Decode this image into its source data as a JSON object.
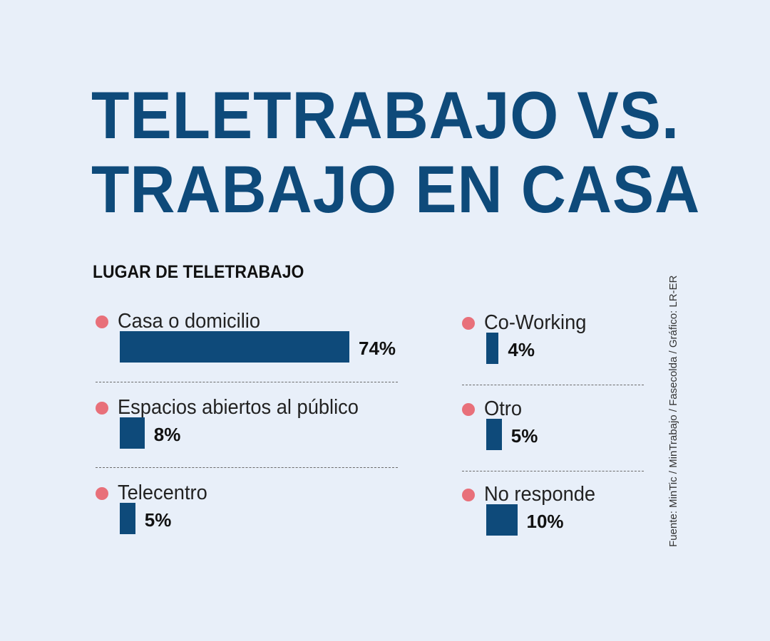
{
  "title_line1": "TELETRABAJO VS.",
  "title_line2": "TRABAJO EN CASA",
  "chart_data": {
    "type": "bar",
    "title": "LUGAR DE TELETRABAJO",
    "categories": [
      "Casa o domicilio",
      "Espacios abiertos al público",
      "Telecentro",
      "Co-Working",
      "Otro",
      "No responde"
    ],
    "values": [
      74,
      8,
      5,
      4,
      5,
      10
    ],
    "value_labels": [
      "74%",
      "8%",
      "5%",
      "4%",
      "5%",
      "10%"
    ],
    "unit": "%"
  },
  "source": "Fuente: MinTic / MinTrabajo / Fasecolda / Gráfico: LR-ER",
  "colors": {
    "bar": "#0e4a7a",
    "dot": "#e8707a",
    "title": "#0e4a7a",
    "background": "#e8eff9"
  }
}
